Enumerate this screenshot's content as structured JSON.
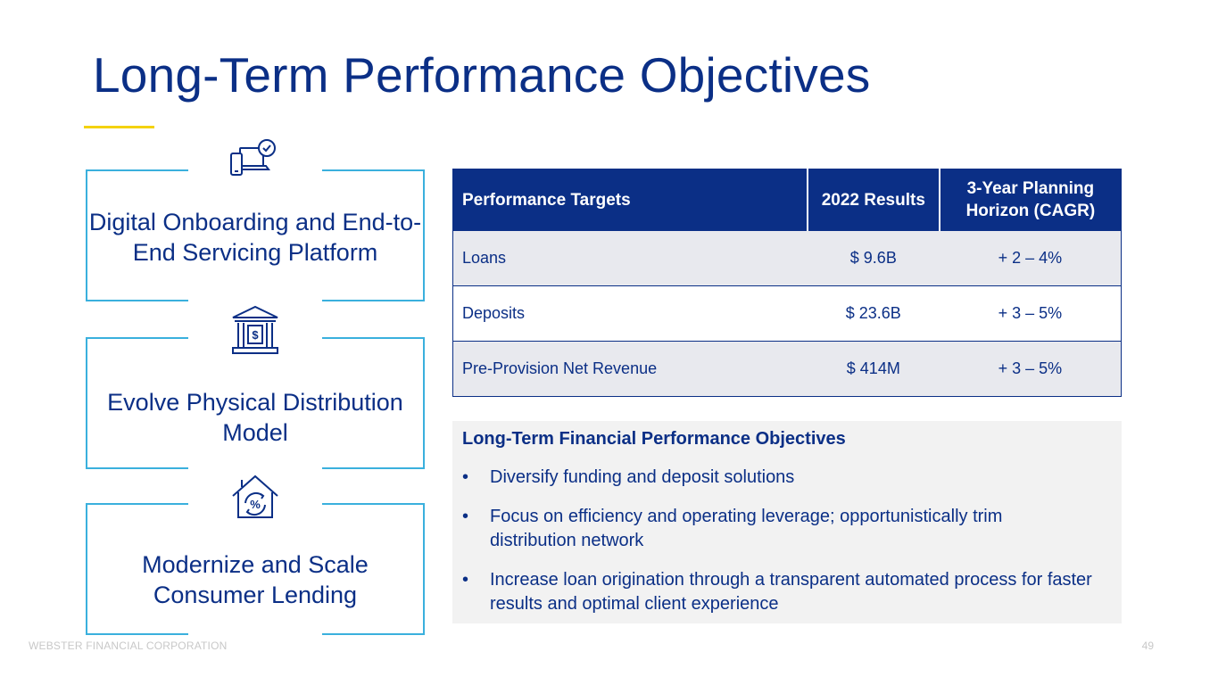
{
  "title": "Long-Term Performance Objectives",
  "colors": {
    "navy": "#0b2f86",
    "accent_yellow": "#f4d20f",
    "card_border": "#3ab0dd"
  },
  "cards": [
    {
      "label": "Digital Onboarding and End-to-End Servicing Platform",
      "icon": "devices-check-icon"
    },
    {
      "label": "Evolve Physical Distribution Model",
      "icon": "bank-building-icon"
    },
    {
      "label": "Modernize and Scale Consumer Lending",
      "icon": "house-percent-icon"
    }
  ],
  "table": {
    "headers": [
      "Performance Targets",
      "2022 Results",
      "3-Year Planning Horizon (CAGR)"
    ],
    "rows": [
      {
        "metric": "Loans",
        "result": "$ 9.6B",
        "target": "+ 2 – 4%"
      },
      {
        "metric": "Deposits",
        "result": "$ 23.6B",
        "target": "+ 3 – 5%"
      },
      {
        "metric": "Pre-Provision Net Revenue",
        "result": "$ 414M",
        "target": "+ 3 – 5%"
      }
    ]
  },
  "objectives": {
    "heading": "Long-Term Financial Performance Objectives",
    "bullet": "•",
    "items": [
      "Diversify funding and deposit solutions",
      "Focus on efficiency and operating leverage; opportunistically trim distribution network",
      "Increase loan origination through a transparent automated process for faster results and optimal client experience"
    ]
  },
  "footer": {
    "company": "WEBSTER FINANCIAL CORPORATION",
    "page": "49"
  }
}
